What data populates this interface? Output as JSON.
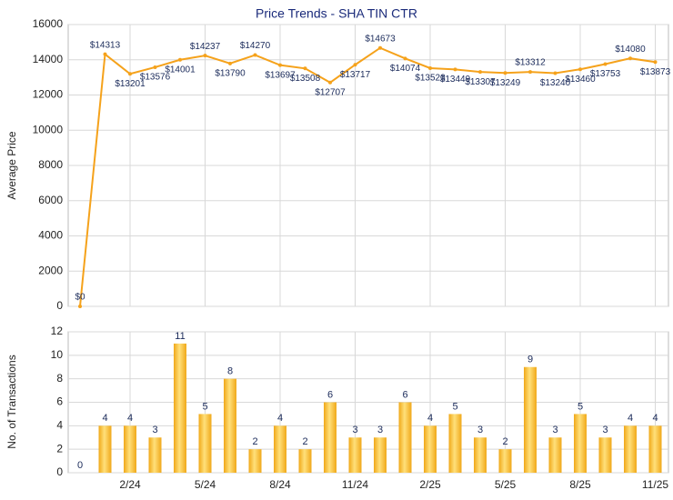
{
  "chart_data": [
    {
      "type": "line",
      "title": "Price Trends - SHA TIN CTR",
      "y_label": "Average Price",
      "series": [
        {
          "name": "Average Price",
          "color": "#f5a21b",
          "values": [
            0,
            14313,
            13201,
            13576,
            14001,
            14237,
            13790,
            14270,
            13697,
            13508,
            12707,
            13717,
            14673,
            14074,
            13523,
            13449,
            13307,
            13249,
            13312,
            13240,
            13460,
            13753,
            14080,
            13873
          ],
          "value_labels": [
            "$0",
            "$14313",
            "$13201",
            "$13576",
            "$14001",
            "$14237",
            "$13790",
            "$14270",
            "$13697",
            "$13508",
            "$12707",
            "$13717",
            "$14673",
            "$14074",
            "$13523",
            "$13449",
            "$13307",
            "$13249",
            "$13312",
            "$13240",
            "$13460",
            "$13753",
            "$14080",
            "$13873"
          ]
        }
      ],
      "ylim": [
        0,
        16000
      ],
      "yticks": [
        0,
        2000,
        4000,
        6000,
        8000,
        10000,
        12000,
        14000,
        16000
      ],
      "grid": true
    },
    {
      "type": "bar",
      "y_label": "No. of Transactions",
      "categories": [
        null,
        null,
        "2/24",
        null,
        null,
        "5/24",
        null,
        null,
        "8/24",
        null,
        null,
        "11/24",
        null,
        null,
        "2/25",
        null,
        null,
        "5/25",
        null,
        null,
        "8/25",
        null,
        null,
        "11/25"
      ],
      "series": [
        {
          "name": "No. of Transactions",
          "color": "#f0a819",
          "values": [
            0,
            4,
            4,
            3,
            11,
            5,
            8,
            2,
            4,
            2,
            6,
            3,
            3,
            6,
            4,
            5,
            3,
            2,
            9,
            3,
            5,
            3,
            4,
            4
          ]
        }
      ],
      "ylim": [
        0,
        12
      ],
      "yticks": [
        0,
        2,
        4,
        6,
        8,
        10,
        12
      ],
      "grid": true
    }
  ]
}
